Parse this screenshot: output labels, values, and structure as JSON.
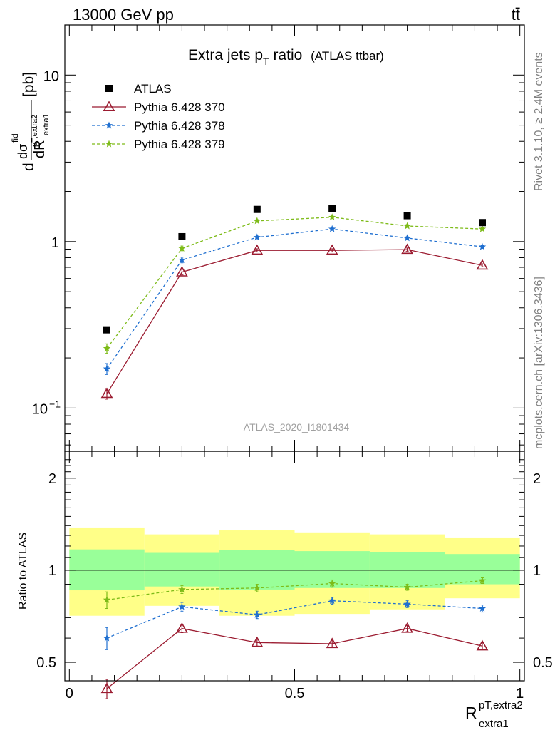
{
  "header": {
    "left": "13000 GeV pp",
    "right": "tt̄"
  },
  "side_labels": {
    "rivet": "Rivet 3.1.10, ≥ 2.4M events",
    "mcplots": "mcplots.cern.ch [arXiv:1306.3436]"
  },
  "chart_data": [
    {
      "type": "line",
      "title": "Extra jets p",
      "title_sub": "T",
      "title_rest": " ratio",
      "title_suffix": "(ATLAS ttbar)",
      "analysis_tag": "ATLAS_2020_I1801434",
      "ylabel": "dσ/dR [pb]",
      "ylabel_main": "d",
      "ylabel_sigma": "dσ",
      "ylabel_fid": "fid",
      "ylabel_sub": "pT,extra2",
      "ylabel_R": "dR",
      "ylabel_R_sub": "extra1",
      "ylabel_unit": "[pb]",
      "yscale": "log",
      "ylim": [
        0.055,
        20
      ],
      "xlim": [
        -0.01,
        1.01
      ],
      "ytick_labels": [
        "10",
        "1",
        "10"
      ],
      "ytick_exp": "−1",
      "legend": {
        "placement": "top-left"
      },
      "x": [
        0.0833,
        0.25,
        0.4167,
        0.5833,
        0.75,
        0.9167
      ],
      "series": [
        {
          "name": "ATLAS",
          "color": "#000000",
          "marker": "square",
          "values": [
            0.295,
            1.07,
            1.56,
            1.58,
            1.43,
            1.3
          ]
        },
        {
          "name": "Pythia 6.428 370",
          "color": "#9b1b30",
          "marker": "open-triangle",
          "dash": "solid",
          "values": [
            0.122,
            0.655,
            0.885,
            0.885,
            0.895,
            0.72
          ],
          "errors": [
            0.009,
            0.025,
            0.02,
            0.02,
            0.02,
            0.015
          ]
        },
        {
          "name": "Pythia 6.428 378",
          "color": "#1f6fd0",
          "marker": "star",
          "dash": "dashed",
          "values": [
            0.172,
            0.775,
            1.06,
            1.19,
            1.05,
            0.93
          ],
          "errors": [
            0.013,
            0.03,
            0.02,
            0.02,
            0.02,
            0.02
          ]
        },
        {
          "name": "Pythia 6.428 379",
          "color": "#7dbb18",
          "marker": "star",
          "dash": "dashed",
          "values": [
            0.228,
            0.91,
            1.33,
            1.4,
            1.24,
            1.19
          ],
          "errors": [
            0.015,
            0.03,
            0.025,
            0.025,
            0.025,
            0.02
          ]
        }
      ]
    },
    {
      "type": "line",
      "ylabel": "Ratio to ATLAS",
      "xlabel": "R",
      "xlabel_sup": "pT,extra2",
      "xlabel_sub": "extra1",
      "yscale": "log",
      "ylim": [
        0.435,
        2.45
      ],
      "xlim": [
        -0.01,
        1.01
      ],
      "yticks": [
        0.5,
        1,
        2
      ],
      "ytick_labels": [
        "0.5",
        "1",
        "2"
      ],
      "xticks": [
        0,
        0.5,
        1
      ],
      "xtick_labels": [
        "0",
        "0.5",
        "1"
      ],
      "bin_edges": [
        0,
        0.1667,
        0.3333,
        0.5,
        0.6667,
        0.8333,
        1.0
      ],
      "band_inner": [
        [
          0.86,
          1.17
        ],
        [
          0.885,
          1.14
        ],
        [
          0.865,
          1.165
        ],
        [
          0.875,
          1.155
        ],
        [
          0.875,
          1.145
        ],
        [
          0.9,
          1.13
        ]
      ],
      "band_outer": [
        [
          0.71,
          1.38
        ],
        [
          0.765,
          1.31
        ],
        [
          0.71,
          1.35
        ],
        [
          0.72,
          1.33
        ],
        [
          0.745,
          1.31
        ],
        [
          0.81,
          1.28
        ]
      ],
      "band_colors": {
        "inner": "#99ff99",
        "outer": "#ffff88"
      },
      "series": [
        {
          "name": "Pythia 6.428 370",
          "color": "#9b1b30",
          "marker": "open-triangle",
          "dash": "solid",
          "values": [
            0.41,
            0.645,
            0.58,
            0.575,
            0.645,
            0.565
          ],
          "errors": [
            0.03,
            0.02,
            0.015,
            0.015,
            0.015,
            0.015
          ]
        },
        {
          "name": "Pythia 6.428 378",
          "color": "#1f6fd0",
          "marker": "star",
          "dash": "dashed",
          "values": [
            0.6,
            0.76,
            0.715,
            0.795,
            0.775,
            0.75
          ],
          "errors": [
            0.05,
            0.025,
            0.02,
            0.02,
            0.02,
            0.02
          ]
        },
        {
          "name": "Pythia 6.428 379",
          "color": "#7dbb18",
          "marker": "star",
          "dash": "dashed",
          "values": [
            0.8,
            0.865,
            0.875,
            0.905,
            0.88,
            0.925
          ],
          "errors": [
            0.05,
            0.025,
            0.025,
            0.025,
            0.02,
            0.02
          ]
        }
      ]
    }
  ]
}
